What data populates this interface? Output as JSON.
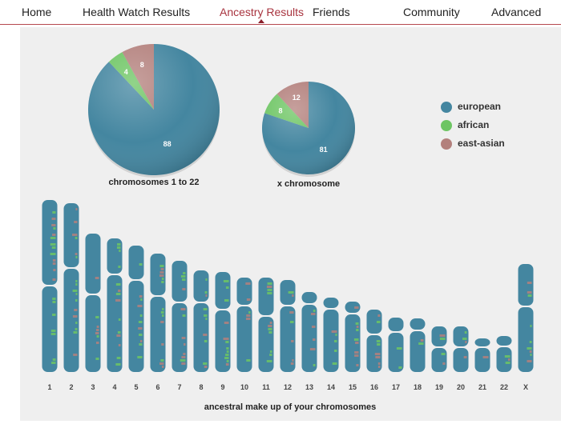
{
  "nav": {
    "items": [
      {
        "label": "Home"
      },
      {
        "label": "Health Watch Results"
      },
      {
        "label": "Ancestry Results",
        "active": true
      },
      {
        "label": "Friends"
      },
      {
        "label": "Community"
      },
      {
        "label": "Advanced"
      }
    ]
  },
  "colors": {
    "european": "#4486a0",
    "african": "#6dc563",
    "east_asian": "#b3807c",
    "accent": "#a8343f"
  },
  "chart_data": [
    {
      "type": "pie",
      "title": "chromosomes 1 to 22",
      "slices": [
        {
          "name": "european",
          "value": 88
        },
        {
          "name": "african",
          "value": 4
        },
        {
          "name": "east-asian",
          "value": 8
        }
      ]
    },
    {
      "type": "pie",
      "title": "x chromosome",
      "slices": [
        {
          "name": "european",
          "value": 81
        },
        {
          "name": "african",
          "value": 8
        },
        {
          "name": "east-asian",
          "value": 12
        }
      ]
    }
  ],
  "legend": [
    {
      "label": "european"
    },
    {
      "label": "african"
    },
    {
      "label": "east-asian"
    }
  ],
  "chromosomes": {
    "caption": "ancestral make up of your chromosomes",
    "labels": [
      "1",
      "2",
      "3",
      "4",
      "5",
      "6",
      "7",
      "8",
      "9",
      "10",
      "11",
      "12",
      "13",
      "14",
      "15",
      "16",
      "17",
      "18",
      "19",
      "20",
      "21",
      "22",
      "X"
    ]
  }
}
